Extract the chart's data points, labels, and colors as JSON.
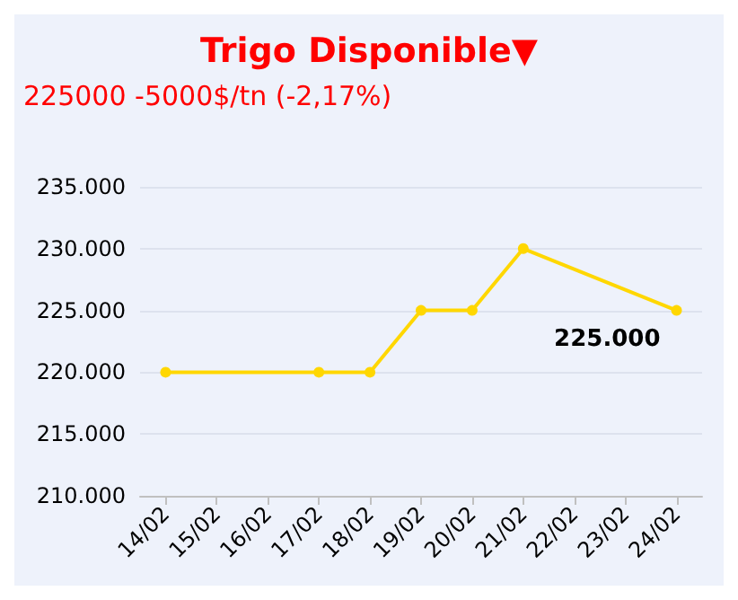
{
  "chart_data": {
    "type": "line",
    "title": "Trigo Disponible▼",
    "subtitle": "225000 -5000$/tn (-2,17%)",
    "categories": [
      "14/02",
      "15/02",
      "16/02",
      "17/02",
      "18/02",
      "19/02",
      "20/02",
      "21/02",
      "22/02",
      "23/02",
      "24/02"
    ],
    "series": [
      {
        "color": "#ffd700",
        "values": [
          220000,
          null,
          null,
          220000,
          220000,
          225000,
          225000,
          230000,
          null,
          null,
          225000
        ]
      }
    ],
    "ylim": [
      210000,
      235000
    ],
    "yticks": [
      {
        "value": 210000,
        "label": "210.000"
      },
      {
        "value": 215000,
        "label": "215.000"
      },
      {
        "value": 220000,
        "label": "220.000"
      },
      {
        "value": 225000,
        "label": "225.000"
      },
      {
        "value": 230000,
        "label": "230.000"
      },
      {
        "value": 235000,
        "label": "235.000"
      }
    ],
    "annotations": [
      {
        "text": "225.000",
        "x": "24/02",
        "y": 225000
      }
    ],
    "grid": "y",
    "marker": "circle",
    "line_style": "solid"
  }
}
